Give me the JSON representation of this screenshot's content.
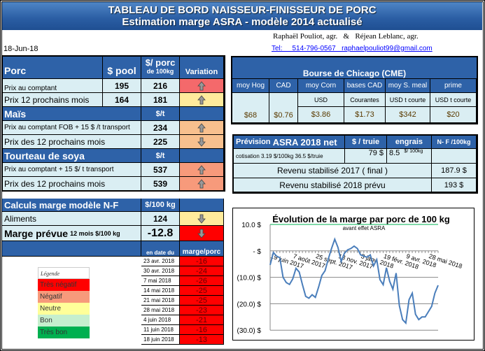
{
  "header": {
    "title": "TABLEAU DE BORD NAISSEUR-FINISSEUR DE PORC",
    "subtitle": "Estimation marge ASRA - modèle 2014 actualisé"
  },
  "authors": {
    "names": "Raphaël Pouliot, agr.   &   Réjean Leblanc, agr.",
    "contact": "Tel:     514-796-0567   raphaelpouliot99@gmail.com"
  },
  "date": "18-Jun-18",
  "colors": {
    "header_blue": "#2e62a8",
    "light_cell": "#daeef3",
    "tres_negatif": "#ff0000",
    "negatif": "#f79a7b",
    "neutre": "#ffeb9c",
    "bon": "#c6efce",
    "tres_bon": "#00b050",
    "chart_line": "#4a7ebb"
  },
  "porc": {
    "title": "Porc",
    "col_pool": "$ pool",
    "col_porc": "$/ porc",
    "col_porc_sub": "de 100kg",
    "col_variation": "Variation",
    "rows": [
      {
        "label": "Prix au comptant",
        "pool": "195",
        "porc": "216",
        "arrow": "up",
        "color": "#f4696b"
      },
      {
        "label": "Prix 12 prochains mois",
        "pool": "164",
        "porc": "181",
        "arrow": "up",
        "color": "#ffeb9c"
      }
    ]
  },
  "mais": {
    "title": "Maïs",
    "unit": "$/t",
    "rows": [
      {
        "label": "Prix au comptant  FOB + 15 $ /t transport",
        "value": "234",
        "arrow": "up",
        "color": "#f8c08e"
      },
      {
        "label": "Prix des 12 prochains mois",
        "value": "225",
        "arrow": "down",
        "color": "#f8c08e"
      }
    ]
  },
  "soya": {
    "title": "Tourteau de soya",
    "unit": "$/t",
    "rows": [
      {
        "label": "Prix au comptant  + 15 $/ t  transport",
        "value": "537",
        "arrow": "up",
        "color": "#f79a7b"
      },
      {
        "label": "Prix des 12 prochains mois",
        "value": "539",
        "arrow": "up",
        "color": "#f79a7b"
      }
    ]
  },
  "calc": {
    "title": "Calculs marge  modèle N-F",
    "unit": "$/100 kg",
    "aliments_label": "Aliments",
    "aliments_value": "124",
    "aliments_arrow": "down",
    "marge_label": "Marge prévue",
    "marge_sub": "12 mois  $/100 kg",
    "marge_value": "-12.8",
    "marge_arrow": "down",
    "history_date_header": "en date du",
    "history_value_header": "marge/porc",
    "history": [
      {
        "date": "23 avr. 2018",
        "value": "-16"
      },
      {
        "date": "30 avr. 2018",
        "value": "-24"
      },
      {
        "date": "7 mai 2018",
        "value": "-26"
      },
      {
        "date": "14 mai 2018",
        "value": "-25"
      },
      {
        "date": "21 mai 2018",
        "value": "-25"
      },
      {
        "date": "28 mai 2018",
        "value": "-23"
      },
      {
        "date": "4 juin 2018",
        "value": "-21"
      },
      {
        "date": "11 juin 2018",
        "value": "-16"
      },
      {
        "date": "18 juin 2018",
        "value": "-13"
      }
    ]
  },
  "legend": {
    "title": "Légende",
    "items": [
      {
        "label": "Très négatif",
        "color": "#ff0000"
      },
      {
        "label": "Négatif",
        "color": "#f79a7b"
      },
      {
        "label": "Neutre",
        "color": "#ffff99"
      },
      {
        "label": "Bon",
        "color": "#c6efce"
      },
      {
        "label": "Très bon",
        "color": "#00b050"
      }
    ]
  },
  "chicago": {
    "title": "Bourse de Chicago (CME)",
    "columns": [
      {
        "header": "moy Hog",
        "unit": "",
        "value": "$68"
      },
      {
        "header": "CAD",
        "unit": "",
        "value": "$0.76"
      },
      {
        "header": "moy Corn",
        "unit": "USD",
        "value": "$3.86"
      },
      {
        "header": "bases CAD",
        "unit": "Courantes",
        "value": "$1.73"
      },
      {
        "header": "moy S. meal",
        "unit": "USD t courte",
        "value": "$342"
      },
      {
        "header": "prime",
        "unit": "USD t courte",
        "value": "$20"
      }
    ]
  },
  "asra": {
    "title_small": "Prévision",
    "title_big": "ASRA 2018 net",
    "col_truie": "$ / truie",
    "col_engrais": "engrais",
    "col_nf": "N- F /100kg",
    "cotisation": "cotisation 3.19 $/100kg  36.5 $/truie",
    "truie_value": "79  $",
    "engrais_value": "8.5",
    "engrais_unit": "$/ 100kg",
    "rev2017_label": "Revenu stabilisé 2017 ( final )",
    "rev2017_value": "187.9 $",
    "rev2018_label": "Revenu stabilisé 2018 prévu",
    "rev2018_value": "193 $"
  },
  "chart_data": {
    "type": "line",
    "title": "Évolution de la marge par porc de 100 kg",
    "subtitle": "avant effet ASRA",
    "ylim": [
      -30,
      10
    ],
    "y_ticks": [
      10,
      0,
      -10,
      -20,
      -30
    ],
    "y_tick_labels": [
      "10.0 $",
      "-   $",
      "(10.0) $",
      "(20.0) $",
      "(30.0) $"
    ],
    "x_tick_labels": [
      "19 juin 2017",
      "7 août 2017",
      "25 sept. 2017",
      "13 nov. 2017",
      "3 janv. 2018",
      "19 févr. 2018",
      "9 avr. 2018",
      "28 mai 2018"
    ],
    "x": [
      "2017-06-19",
      "2017-06-26",
      "2017-07-03",
      "2017-07-10",
      "2017-07-17",
      "2017-07-24",
      "2017-07-31",
      "2017-08-07",
      "2017-08-14",
      "2017-08-21",
      "2017-08-28",
      "2017-09-04",
      "2017-09-11",
      "2017-09-18",
      "2017-09-25",
      "2017-10-02",
      "2017-10-09",
      "2017-10-16",
      "2017-10-23",
      "2017-10-30",
      "2017-11-06",
      "2017-11-13",
      "2017-11-20",
      "2017-11-27",
      "2017-12-04",
      "2017-12-11",
      "2017-12-18",
      "2017-12-25",
      "2018-01-01",
      "2018-01-08",
      "2018-01-15",
      "2018-01-22",
      "2018-01-29",
      "2018-02-05",
      "2018-02-12",
      "2018-02-19",
      "2018-02-26",
      "2018-03-05",
      "2018-03-12",
      "2018-03-19",
      "2018-03-26",
      "2018-04-02",
      "2018-04-09",
      "2018-04-16",
      "2018-04-23",
      "2018-04-30",
      "2018-05-07",
      "2018-05-14",
      "2018-05-21",
      "2018-05-28",
      "2018-06-04",
      "2018-06-11",
      "2018-06-18"
    ],
    "values": [
      -5.3,
      -0.6,
      -2,
      -2.6,
      -10,
      -12,
      -12.7,
      -10.6,
      -6.6,
      -8,
      -12.8,
      -17.2,
      -17.9,
      -16.6,
      -17.6,
      -13.7,
      -9.3,
      -7.5,
      -3.1,
      0.9,
      4.4,
      1.3,
      -4,
      -0.9,
      0.4,
      0.9,
      1.8,
      0.9,
      -1.5,
      -2,
      -2.4,
      -1.5,
      -5.7,
      -3.3,
      -10.9,
      -12.8,
      -6.4,
      -11.5,
      -14.5,
      -8.4,
      -20.7,
      -26,
      -27.3,
      -18.5,
      -16,
      -24,
      -26,
      -25,
      -25,
      -23,
      -21,
      -16,
      -13
    ],
    "grid": true,
    "legend": "none"
  }
}
